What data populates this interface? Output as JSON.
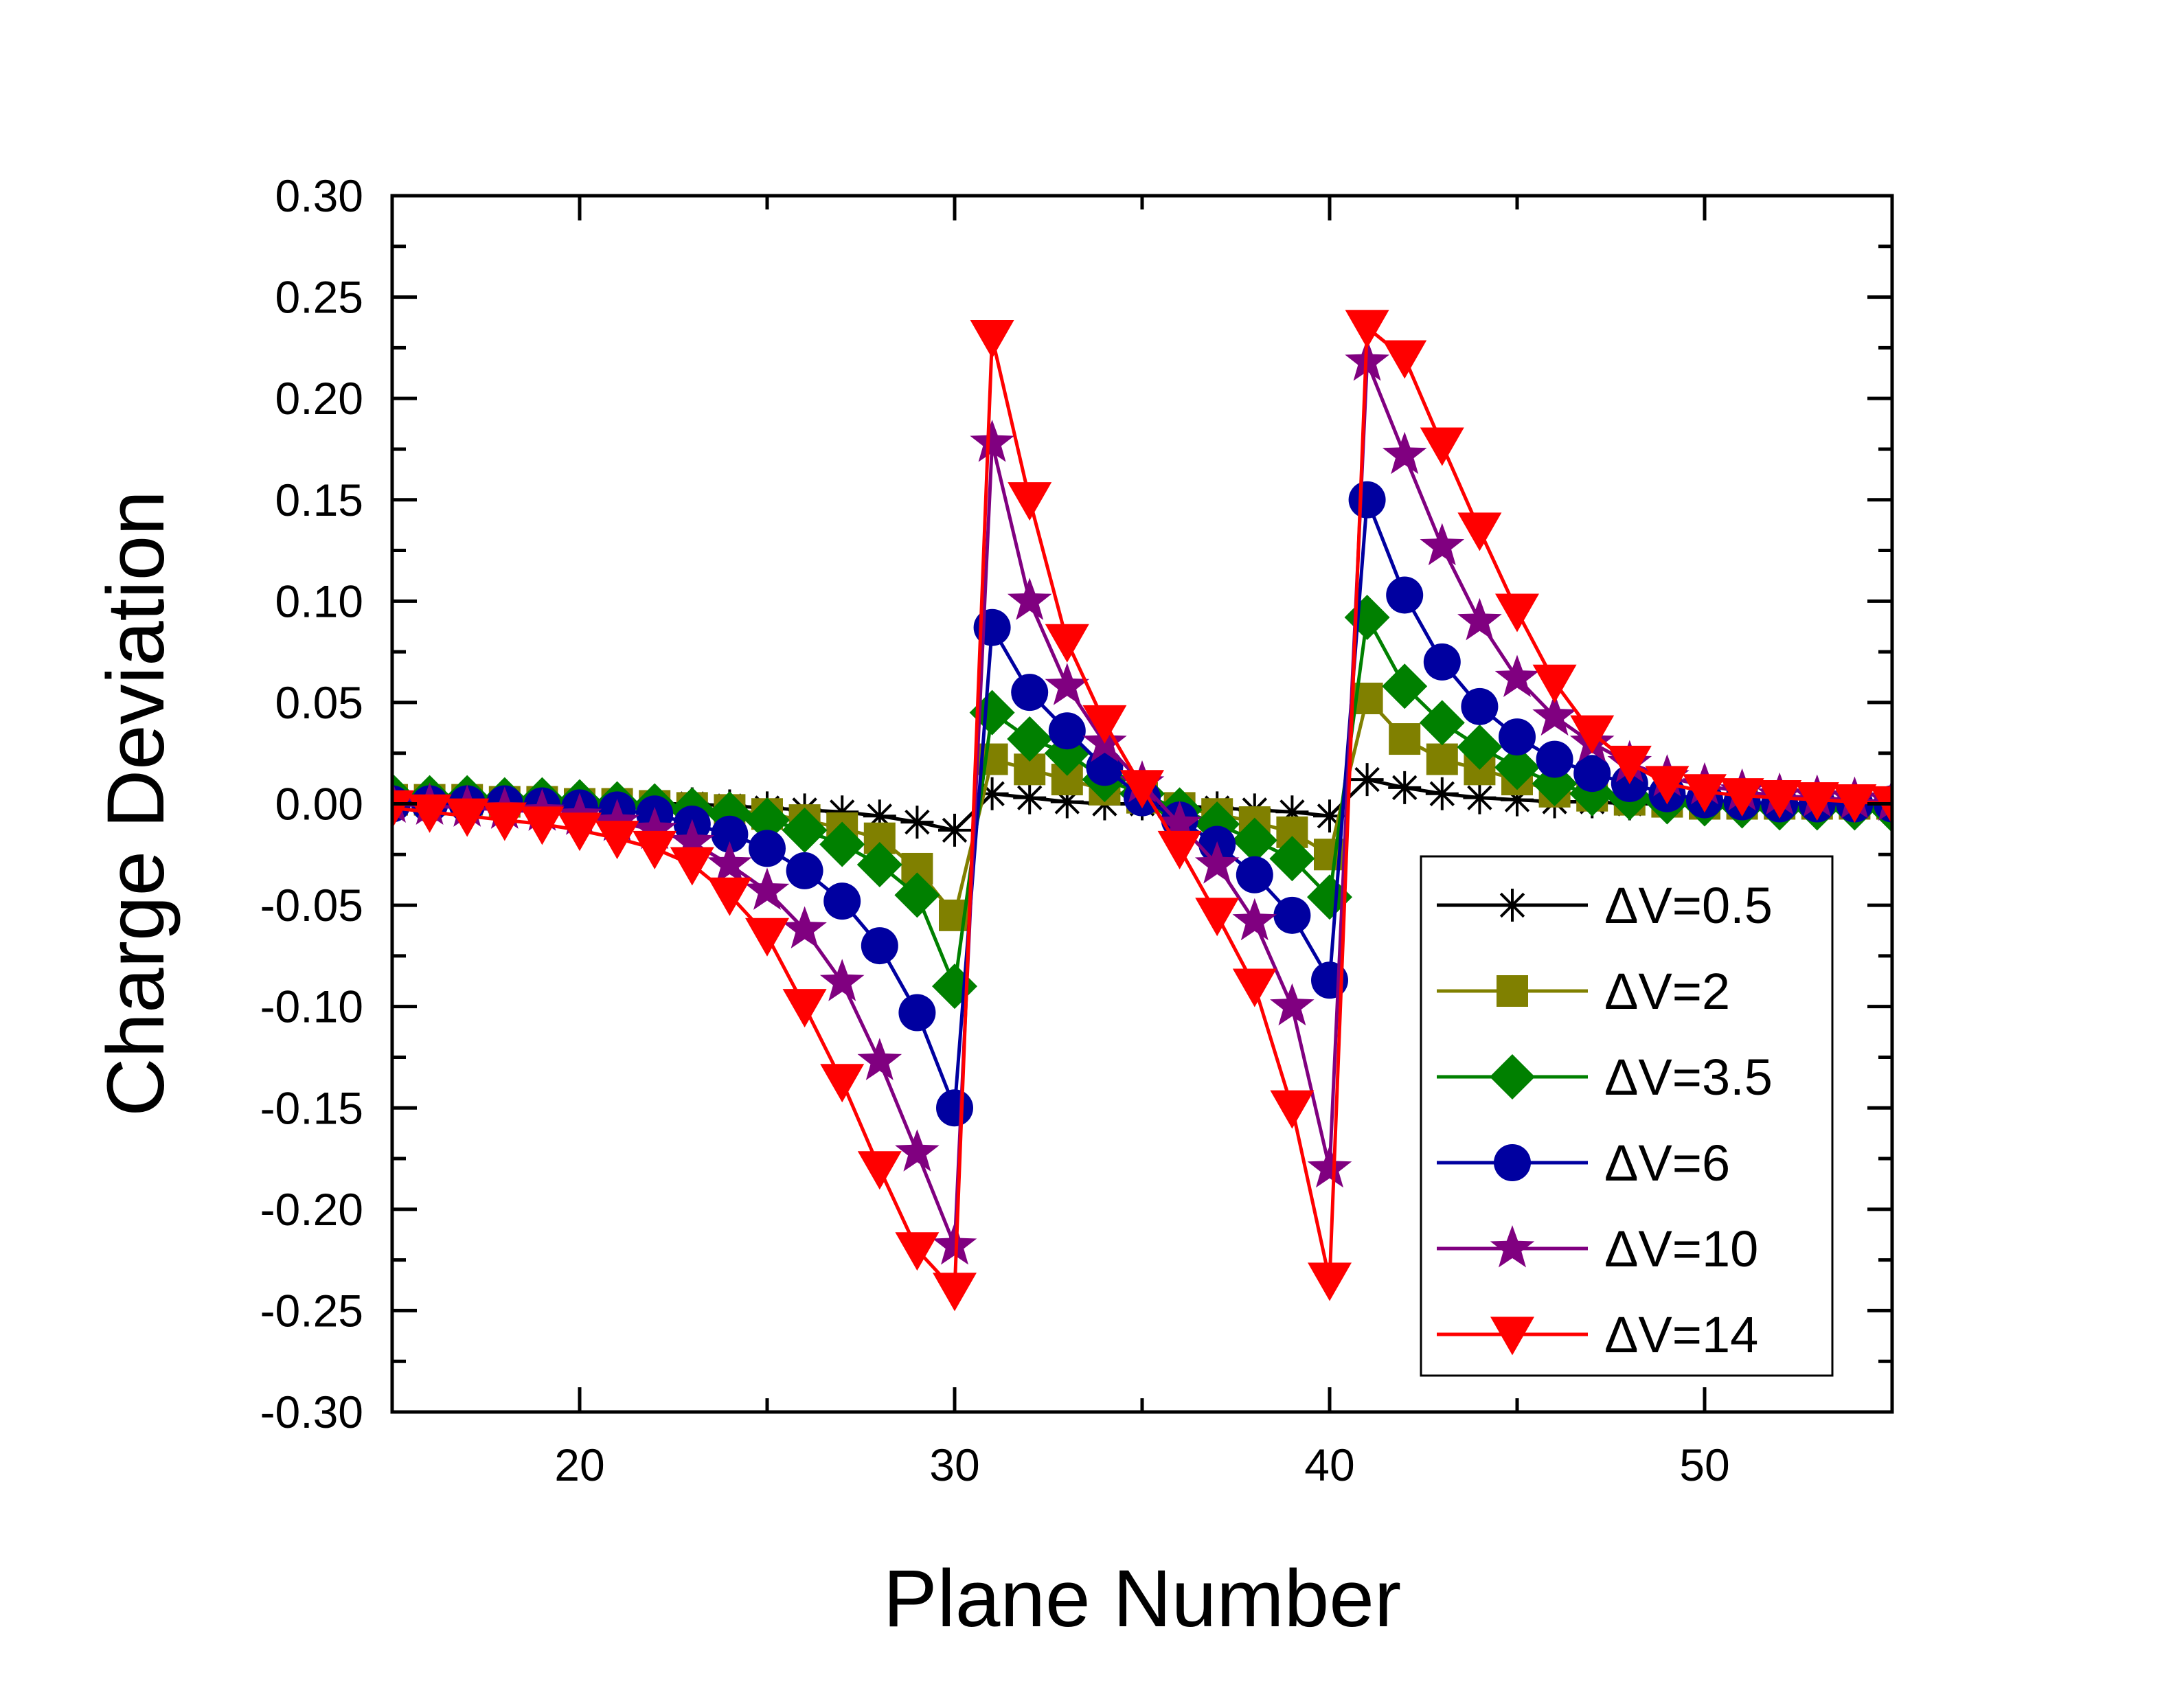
{
  "chart_data": {
    "type": "line",
    "title": "",
    "xlabel": "Plane Number",
    "ylabel": "Charge Deviation",
    "xlim": [
      15,
      55
    ],
    "ylim": [
      -0.3,
      0.3
    ],
    "x_ticks": [
      20,
      30,
      40,
      50
    ],
    "x_tick_labels": [
      "20",
      "30",
      "40",
      "50"
    ],
    "y_ticks": [
      -0.3,
      -0.25,
      -0.2,
      -0.15,
      -0.1,
      -0.05,
      0.0,
      0.05,
      0.1,
      0.15,
      0.2,
      0.25,
      0.3
    ],
    "y_tick_labels": [
      "-0.30",
      "-0.25",
      "-0.20",
      "-0.15",
      "-0.10",
      "-0.05",
      "0.00",
      "0.05",
      "0.10",
      "0.15",
      "0.20",
      "0.25",
      "0.30"
    ],
    "grid": false,
    "legend_position": "lower-right",
    "x": [
      15,
      16,
      17,
      18,
      19,
      20,
      21,
      22,
      23,
      24,
      25,
      26,
      27,
      28,
      29,
      30,
      31,
      32,
      33,
      34,
      35,
      36,
      37,
      38,
      39,
      40,
      41,
      42,
      43,
      44,
      45,
      46,
      47,
      48,
      49,
      50,
      51,
      52,
      53,
      54,
      55
    ],
    "series": [
      {
        "name": "ΔV=0.5",
        "color": "#000000",
        "marker": "asterisk",
        "values": [
          0.001,
          0.001,
          0.001,
          0.001,
          0.0,
          0.0,
          0.0,
          0.0,
          0.0,
          -0.001,
          -0.002,
          -0.003,
          -0.004,
          -0.006,
          -0.009,
          -0.013,
          0.005,
          0.003,
          0.001,
          0.0,
          0.0,
          -0.001,
          -0.002,
          -0.003,
          -0.004,
          -0.006,
          0.012,
          0.008,
          0.005,
          0.003,
          0.002,
          0.001,
          0.001,
          0.0,
          0.0,
          0.0,
          0.0,
          0.0,
          0.0,
          0.0,
          0.0
        ]
      },
      {
        "name": "ΔV=2",
        "color": "#808000",
        "marker": "square",
        "values": [
          0.002,
          0.002,
          0.002,
          0.001,
          0.001,
          0.0,
          0.0,
          -0.001,
          -0.002,
          -0.003,
          -0.005,
          -0.008,
          -0.012,
          -0.017,
          -0.032,
          -0.055,
          0.022,
          0.017,
          0.012,
          0.007,
          0.003,
          -0.002,
          -0.005,
          -0.009,
          -0.014,
          -0.025,
          0.052,
          0.032,
          0.022,
          0.017,
          0.012,
          0.006,
          0.004,
          0.002,
          0.001,
          0.0,
          0.0,
          0.0,
          0.0,
          0.0,
          0.0
        ]
      },
      {
        "name": "ΔV=3.5",
        "color": "#008000",
        "marker": "diamond",
        "values": [
          0.004,
          0.003,
          0.003,
          0.002,
          0.002,
          0.001,
          0.0,
          -0.001,
          -0.003,
          -0.005,
          -0.008,
          -0.013,
          -0.02,
          -0.03,
          -0.045,
          -0.09,
          0.045,
          0.032,
          0.025,
          0.012,
          0.005,
          -0.003,
          -0.01,
          -0.018,
          -0.027,
          -0.046,
          0.092,
          0.058,
          0.04,
          0.028,
          0.018,
          0.01,
          0.005,
          0.003,
          0.001,
          0.0,
          -0.001,
          -0.002,
          -0.002,
          -0.002,
          -0.003
        ]
      },
      {
        "name": "ΔV=6",
        "color": "#0000A0",
        "marker": "circle",
        "values": [
          0.0,
          0.0,
          0.0,
          0.0,
          -0.001,
          -0.002,
          -0.003,
          -0.005,
          -0.01,
          -0.015,
          -0.022,
          -0.033,
          -0.048,
          -0.07,
          -0.103,
          -0.15,
          0.087,
          0.055,
          0.036,
          0.018,
          0.003,
          -0.008,
          -0.02,
          -0.035,
          -0.055,
          -0.087,
          0.15,
          0.103,
          0.07,
          0.048,
          0.033,
          0.022,
          0.015,
          0.01,
          0.005,
          0.002,
          0.001,
          0.0,
          0.0,
          0.0,
          0.0
        ]
      },
      {
        "name": "ΔV=10",
        "color": "#800080",
        "marker": "star",
        "values": [
          0.0,
          -0.001,
          -0.002,
          -0.003,
          -0.004,
          -0.006,
          -0.009,
          -0.013,
          -0.019,
          -0.03,
          -0.043,
          -0.062,
          -0.088,
          -0.127,
          -0.172,
          -0.218,
          0.178,
          0.1,
          0.058,
          0.03,
          0.01,
          -0.01,
          -0.03,
          -0.058,
          -0.1,
          -0.18,
          0.218,
          0.172,
          0.127,
          0.09,
          0.062,
          0.043,
          0.03,
          0.02,
          0.013,
          0.009,
          0.006,
          0.004,
          0.003,
          0.002,
          0.001
        ]
      },
      {
        "name": "ΔV=14",
        "color": "#FF0000",
        "marker": "triangle-down",
        "values": [
          -0.002,
          -0.004,
          -0.006,
          -0.008,
          -0.01,
          -0.013,
          -0.017,
          -0.022,
          -0.03,
          -0.045,
          -0.065,
          -0.1,
          -0.137,
          -0.18,
          -0.22,
          -0.24,
          0.23,
          0.15,
          0.08,
          0.04,
          0.008,
          -0.022,
          -0.055,
          -0.09,
          -0.15,
          -0.235,
          0.235,
          0.22,
          0.177,
          0.135,
          0.095,
          0.06,
          0.035,
          0.02,
          0.01,
          0.006,
          0.004,
          0.003,
          0.002,
          0.001,
          0.0
        ]
      }
    ]
  }
}
